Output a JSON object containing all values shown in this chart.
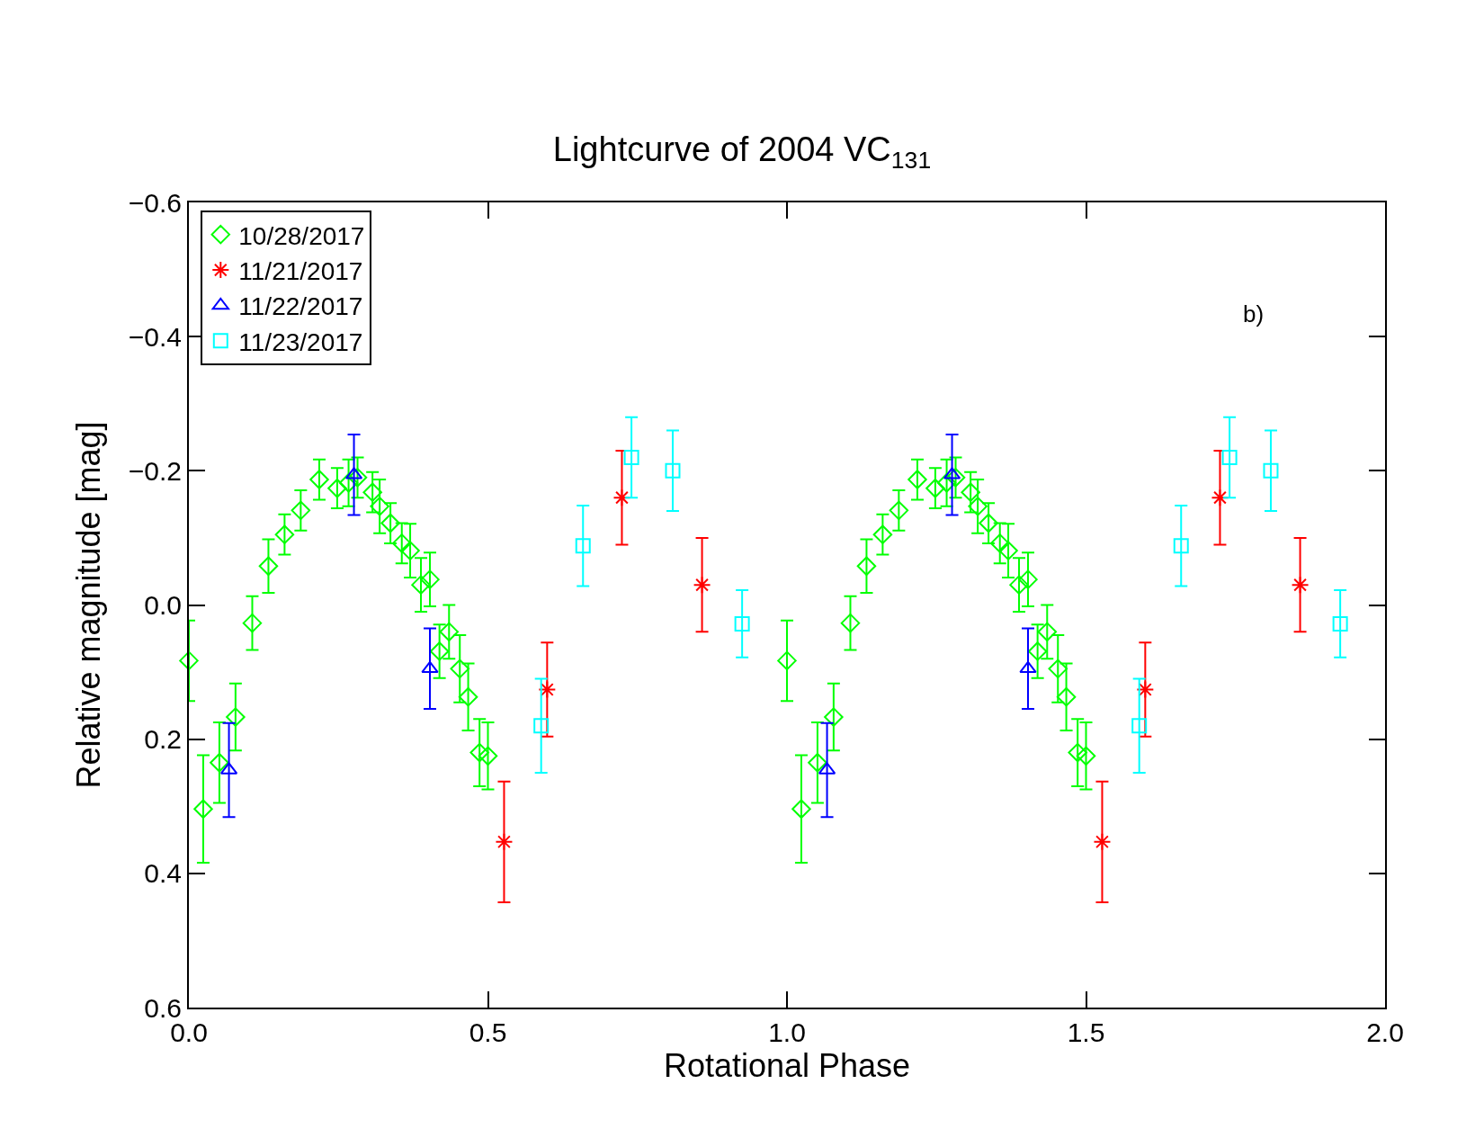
{
  "chart_data": {
    "type": "scatter",
    "title": "Lightcurve of 2004 VC$_{131}$",
    "xlabel": "Rotational Phase",
    "ylabel": "Relative magnitude [mag]",
    "annotations": [
      "b)"
    ],
    "xlim": [
      0,
      2
    ],
    "xticks": [
      {
        "value": 0,
        "label": "0.0"
      },
      0.5,
      {
        "value": 1,
        "label": "1.0"
      },
      1.5,
      {
        "value": 2,
        "label": "2.0"
      }
    ],
    "ylim": [
      0.6,
      -0.6
    ],
    "yticks": [
      {
        "value": -0.6,
        "label": "−0.6"
      },
      {
        "value": -0.4,
        "label": "−0.4"
      },
      {
        "value": -0.2,
        "label": "−0.2"
      },
      {
        "value": 0,
        "label": "0.0"
      },
      0.2,
      0.4,
      0.6
    ],
    "grid": false,
    "legend": "top left",
    "series": [
      {
        "name": "10/28/2017",
        "color": "#00ff00",
        "marker": "diamond",
        "x": [
          0,
          0.024,
          0.051,
          0.078,
          0.106,
          0.133,
          0.16,
          0.187,
          0.218,
          0.248,
          0.267,
          0.282,
          0.307,
          0.319,
          0.337,
          0.356,
          0.37,
          0.388,
          0.403,
          0.419,
          0.435,
          0.453,
          0.467,
          0.486,
          0.5,
          1,
          1.024,
          1.051,
          1.078,
          1.106,
          1.133,
          1.16,
          1.187,
          1.218,
          1.248,
          1.267,
          1.282,
          1.307,
          1.319,
          1.337,
          1.356,
          1.37,
          1.388,
          1.403,
          1.419,
          1.435,
          1.453,
          1.467,
          1.486,
          1.5
        ],
        "values": [
          0.083,
          0.304,
          0.235,
          0.167,
          0.027,
          -0.058,
          -0.105,
          -0.141,
          -0.187,
          -0.174,
          -0.182,
          -0.19,
          -0.168,
          -0.147,
          -0.122,
          -0.092,
          -0.081,
          -0.03,
          -0.038,
          0.069,
          0.04,
          0.095,
          0.137,
          0.22,
          0.225,
          0.083,
          0.304,
          0.235,
          0.167,
          0.027,
          -0.058,
          -0.105,
          -0.141,
          -0.187,
          -0.174,
          -0.182,
          -0.19,
          -0.168,
          -0.147,
          -0.122,
          -0.092,
          -0.081,
          -0.03,
          -0.038,
          0.069,
          0.04,
          0.095,
          0.137,
          0.22,
          0.225
        ],
        "errors": [
          0.06,
          0.08,
          0.06,
          0.05,
          0.04,
          0.04,
          0.03,
          0.03,
          0.03,
          0.03,
          0.035,
          0.03,
          0.03,
          0.04,
          0.03,
          0.03,
          0.04,
          0.04,
          0.04,
          0.04,
          0.04,
          0.05,
          0.05,
          0.05,
          0.05,
          0.06,
          0.08,
          0.06,
          0.05,
          0.04,
          0.04,
          0.03,
          0.03,
          0.03,
          0.03,
          0.035,
          0.03,
          0.03,
          0.04,
          0.03,
          0.03,
          0.04,
          0.04,
          0.04,
          0.04,
          0.04,
          0.05,
          0.05,
          0.05,
          0.05
        ]
      },
      {
        "name": "11/21/2017",
        "color": "#ff0000",
        "marker": "cross",
        "x": [
          0.527,
          0.599,
          0.724,
          0.858,
          1.527,
          1.599,
          1.724,
          1.858
        ],
        "values": [
          0.353,
          0.126,
          -0.16,
          -0.03,
          0.353,
          0.126,
          -0.16,
          -0.03
        ],
        "errors": [
          0.09,
          0.07,
          0.07,
          0.07,
          0.09,
          0.07,
          0.07,
          0.07
        ]
      },
      {
        "name": "11/22/2017",
        "color": "#0000ff",
        "marker": "triangle",
        "x": [
          0.067,
          0.276,
          0.403,
          1.067,
          1.276,
          1.403
        ],
        "values": [
          0.246,
          -0.194,
          0.095,
          0.246,
          -0.194,
          0.095
        ],
        "errors": [
          0.07,
          0.06,
          0.06,
          0.07,
          0.06,
          0.06
        ]
      },
      {
        "name": "11/23/2017",
        "color": "#00ffff",
        "marker": "square",
        "x": [
          0.589,
          0.659,
          0.74,
          0.809,
          0.925,
          1.589,
          1.659,
          1.74,
          1.809,
          1.925
        ],
        "values": [
          0.18,
          -0.088,
          -0.22,
          -0.2,
          0.028,
          0.18,
          -0.088,
          -0.22,
          -0.2,
          0.028
        ],
        "errors": [
          0.07,
          0.06,
          0.06,
          0.06,
          0.05,
          0.07,
          0.06,
          0.06,
          0.06,
          0.05
        ]
      }
    ]
  }
}
